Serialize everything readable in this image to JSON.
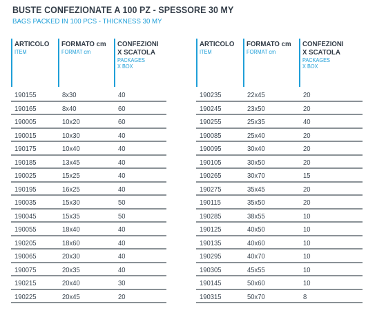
{
  "title": "BUSTE CONFEZIONATE A 100 PZ - SPESSORE 30 MY",
  "subtitle": "BAGS PACKED IN 100 PCS - THICKNESS 30 MY",
  "headers": {
    "articolo": "ARTICOLO",
    "item": "ITEM",
    "formato": "FORMATO cm",
    "format": "FORMAT cm",
    "confezioni_1": "CONFEZIONI",
    "confezioni_2": "X SCATOLA",
    "packages": "PACKAGES",
    "xbox": "X BOX"
  },
  "accent_color": "#1f9fd8",
  "left_rows": [
    {
      "code": "190155",
      "format": "8x30",
      "qty": "40"
    },
    {
      "code": "190165",
      "format": "8x40",
      "qty": "60"
    },
    {
      "code": "190005",
      "format": "10x20",
      "qty": "60"
    },
    {
      "code": "190015",
      "format": "10x30",
      "qty": "40"
    },
    {
      "code": "190175",
      "format": "10x40",
      "qty": "40"
    },
    {
      "code": "190185",
      "format": "13x45",
      "qty": "40"
    },
    {
      "code": "190025",
      "format": "15x25",
      "qty": "40"
    },
    {
      "code": "190195",
      "format": "16x25",
      "qty": "40"
    },
    {
      "code": "190035",
      "format": "15x30",
      "qty": "50"
    },
    {
      "code": "190045",
      "format": "15x35",
      "qty": "50"
    },
    {
      "code": "190055",
      "format": "18x40",
      "qty": "40"
    },
    {
      "code": "190205",
      "format": "18x60",
      "qty": "40"
    },
    {
      "code": "190065",
      "format": "20x30",
      "qty": "40"
    },
    {
      "code": "190075",
      "format": "20x35",
      "qty": "40"
    },
    {
      "code": "190215",
      "format": "20x40",
      "qty": "30"
    },
    {
      "code": "190225",
      "format": "20x45",
      "qty": "20"
    }
  ],
  "right_rows": [
    {
      "code": "190235",
      "format": "22x45",
      "qty": "20"
    },
    {
      "code": "190245",
      "format": "23x50",
      "qty": "20"
    },
    {
      "code": "190255",
      "format": "25x35",
      "qty": "40"
    },
    {
      "code": "190085",
      "format": "25x40",
      "qty": "20"
    },
    {
      "code": "190095",
      "format": "30x40",
      "qty": "20"
    },
    {
      "code": "190105",
      "format": "30x50",
      "qty": "20"
    },
    {
      "code": "190265",
      "format": "30x70",
      "qty": "15"
    },
    {
      "code": "190275",
      "format": "35x45",
      "qty": "20"
    },
    {
      "code": "190115",
      "format": "35x50",
      "qty": "20"
    },
    {
      "code": "190285",
      "format": "38x55",
      "qty": "10"
    },
    {
      "code": "190125",
      "format": "40x50",
      "qty": "10"
    },
    {
      "code": "190135",
      "format": "40x60",
      "qty": "10"
    },
    {
      "code": "190295",
      "format": "40x70",
      "qty": "10"
    },
    {
      "code": "190305",
      "format": "45x55",
      "qty": "10"
    },
    {
      "code": "190145",
      "format": "50x60",
      "qty": "10"
    },
    {
      "code": "190315",
      "format": "50x70",
      "qty": "8"
    }
  ]
}
